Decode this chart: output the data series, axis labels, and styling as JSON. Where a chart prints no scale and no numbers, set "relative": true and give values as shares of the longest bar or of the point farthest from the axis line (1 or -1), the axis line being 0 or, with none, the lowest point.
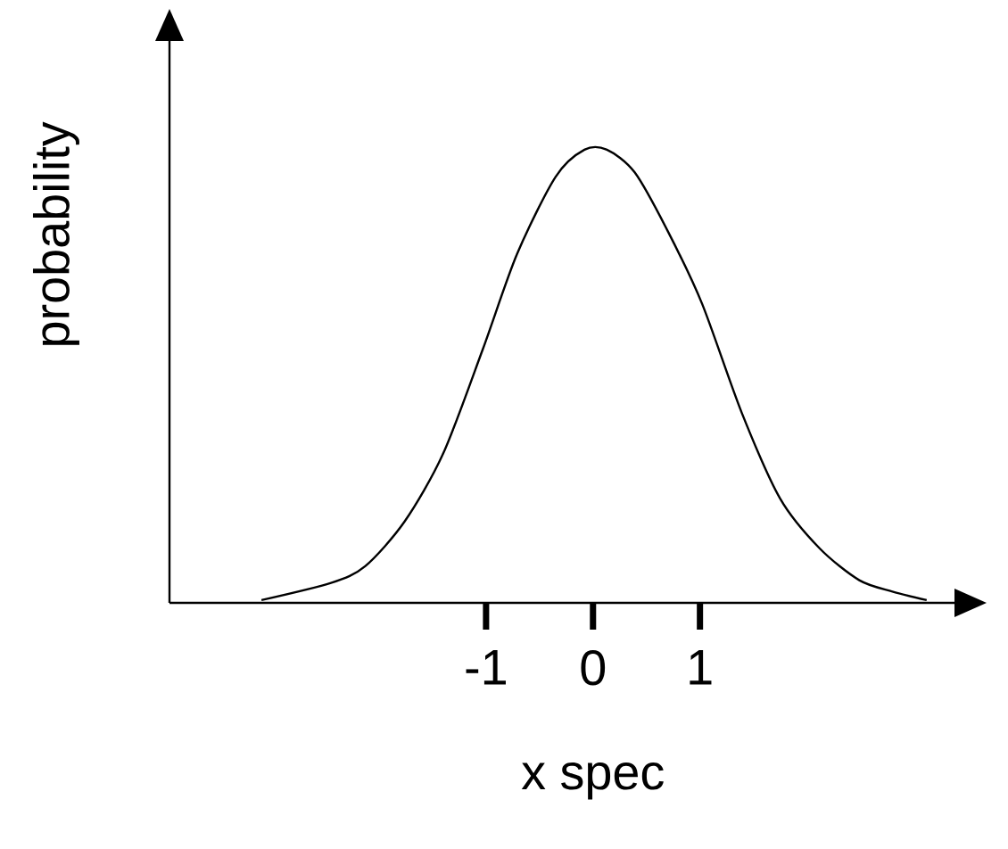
{
  "chart_data": {
    "type": "line",
    "xlabel": "x spec",
    "ylabel": "probability",
    "relative": true,
    "xlim": [
      -3.96,
      3.38
    ],
    "xticks": [
      -1,
      0,
      1
    ],
    "color": "#000000",
    "x": [
      -3.1,
      -2.45,
      -2.13,
      -1.76,
      -1.4,
      -1.03,
      -0.71,
      -0.35,
      -0.08,
      0.13,
      0.39,
      0.7,
      1.02,
      1.39,
      1.75,
      2.12,
      2.49,
      2.8,
      3.12
    ],
    "values": [
      0.006,
      0.044,
      0.081,
      0.18,
      0.33,
      0.56,
      0.77,
      0.94,
      1,
      1,
      0.95,
      0.82,
      0.66,
      0.42,
      0.23,
      0.12,
      0.05,
      0.025,
      0.006
    ]
  }
}
